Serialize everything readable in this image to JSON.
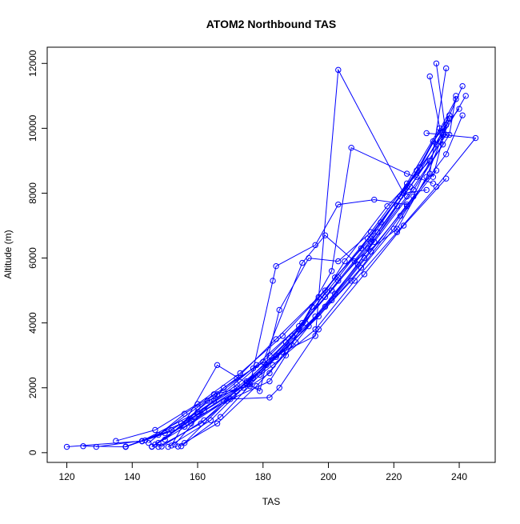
{
  "chart_data": {
    "type": "line",
    "title": "ATOM2 Northbound TAS",
    "xlabel": "TAS",
    "ylabel": "Altitude (m)",
    "xlim": [
      114,
      251
    ],
    "ylim": [
      -300,
      12500
    ],
    "xticks": [
      120,
      140,
      160,
      180,
      200,
      220,
      240
    ],
    "yticks": [
      0,
      2000,
      4000,
      6000,
      8000,
      10000,
      12000
    ],
    "grid": false,
    "legend": "none",
    "markers": "open-circle",
    "color": "#0000ff",
    "series": [
      {
        "x": [
          120,
          143,
          160,
          172,
          184,
          196,
          209,
          221,
          232,
          240
        ],
        "y": [
          180,
          360,
          1250,
          2000,
          3000,
          4200,
          5800,
          7600,
          9600,
          10600
        ]
      },
      {
        "x": [
          125,
          138,
          148,
          160,
          172,
          184,
          197,
          210,
          222,
          233,
          241
        ],
        "y": [
          200,
          180,
          550,
          1400,
          2300,
          3500,
          4800,
          6300,
          7900,
          9500,
          11300
        ]
      },
      {
        "x": [
          129,
          144,
          156,
          168,
          181,
          194,
          207,
          220,
          231,
          236
        ],
        "y": [
          180,
          380,
          800,
          1600,
          2700,
          3900,
          5300,
          6900,
          8600,
          11850
        ]
      },
      {
        "x": [
          135,
          147,
          160,
          173,
          186,
          199,
          212,
          224,
          235,
          242
        ],
        "y": [
          360,
          700,
          1500,
          2450,
          3600,
          5000,
          6600,
          8200,
          9800,
          11000
        ]
      },
      {
        "x": [
          138,
          150,
          162,
          175,
          188,
          201,
          213,
          226,
          237
        ],
        "y": [
          180,
          600,
          1300,
          2150,
          3300,
          4700,
          6200,
          7900,
          10300
        ]
      },
      {
        "x": [
          138,
          152,
          165,
          178,
          191,
          203,
          216,
          228,
          239
        ],
        "y": [
          190,
          700,
          1600,
          2700,
          3900,
          5400,
          7100,
          8800,
          10900
        ]
      },
      {
        "x": [
          146,
          158,
          171,
          183,
          196,
          208,
          221,
          233,
          245,
          230
        ],
        "y": [
          180,
          900,
          1750,
          2700,
          3800,
          5300,
          6800,
          8200,
          9700,
          9850
        ]
      },
      {
        "x": [
          146,
          159,
          172,
          184,
          197,
          210,
          222,
          233
        ],
        "y": [
          190,
          1100,
          1900,
          2950,
          4200,
          5700,
          7300,
          8700
        ]
      },
      {
        "x": [
          148,
          161,
          174,
          186,
          199,
          211,
          224,
          236,
          241
        ],
        "y": [
          180,
          900,
          2000,
          3100,
          4500,
          6000,
          7600,
          9200,
          10400
        ]
      },
      {
        "x": [
          149,
          162,
          175,
          187,
          199,
          212,
          224,
          235,
          231
        ],
        "y": [
          190,
          1000,
          2200,
          3400,
          4800,
          6300,
          7900,
          9500,
          11600
        ]
      },
      {
        "x": [
          151,
          164,
          177,
          189,
          201,
          213,
          225,
          236,
          233
        ],
        "y": [
          180,
          1000,
          2300,
          3600,
          5000,
          6500,
          8200,
          9800,
          12000
        ]
      },
      {
        "x": [
          154,
          166,
          178,
          190,
          202,
          214,
          226,
          237,
          239
        ],
        "y": [
          190,
          900,
          2050,
          3400,
          4900,
          6500,
          8100,
          9800,
          11000
        ]
      },
      {
        "x": [
          155,
          167,
          179,
          191,
          203,
          215,
          227,
          236,
          232
        ],
        "y": [
          200,
          1100,
          2400,
          3800,
          5300,
          6800,
          8500,
          10100,
          8500
        ]
      },
      {
        "x": [
          143,
          155,
          166,
          177,
          186,
          196,
          203,
          223,
          230
        ],
        "y": [
          350,
          900,
          1800,
          2600,
          3100,
          3600,
          11800,
          8000,
          8100
        ]
      },
      {
        "x": [
          148,
          160,
          172,
          182,
          192,
          201,
          207,
          224,
          232
        ],
        "y": [
          300,
          1200,
          2100,
          3000,
          4000,
          5600,
          9400,
          8600,
          8300
        ]
      },
      {
        "x": [
          150,
          163,
          176,
          183,
          184,
          196,
          203,
          214,
          224
        ],
        "y": [
          400,
          1600,
          2100,
          5300,
          5750,
          6400,
          7650,
          7800,
          7650
        ]
      },
      {
        "x": [
          147,
          158,
          170,
          182,
          185,
          197,
          211,
          223,
          236
        ],
        "y": [
          250,
          1000,
          1650,
          1700,
          2000,
          3800,
          5500,
          7000,
          8450
        ]
      },
      {
        "x": [
          145,
          156,
          165,
          176,
          182,
          193,
          205,
          218,
          231
        ],
        "y": [
          300,
          1200,
          1800,
          2050,
          2450,
          4000,
          5900,
          7600,
          9000
        ]
      },
      {
        "x": [
          152,
          166,
          179,
          185,
          194,
          203,
          213,
          224,
          234
        ],
        "y": [
          220,
          2700,
          1900,
          4400,
          6000,
          5900,
          6800,
          8300,
          10000
        ]
      },
      {
        "x": [
          153,
          168,
          180,
          192,
          199,
          208,
          221,
          230,
          237
        ],
        "y": [
          250,
          2000,
          2800,
          5850,
          6700,
          5900,
          6900,
          8500,
          10300
        ]
      },
      {
        "x": [
          156,
          169,
          182,
          187,
          195,
          202,
          213,
          227,
          237
        ],
        "y": [
          300,
          1600,
          2200,
          3000,
          4500,
          5400,
          6600,
          8700,
          10400
        ]
      }
    ]
  }
}
